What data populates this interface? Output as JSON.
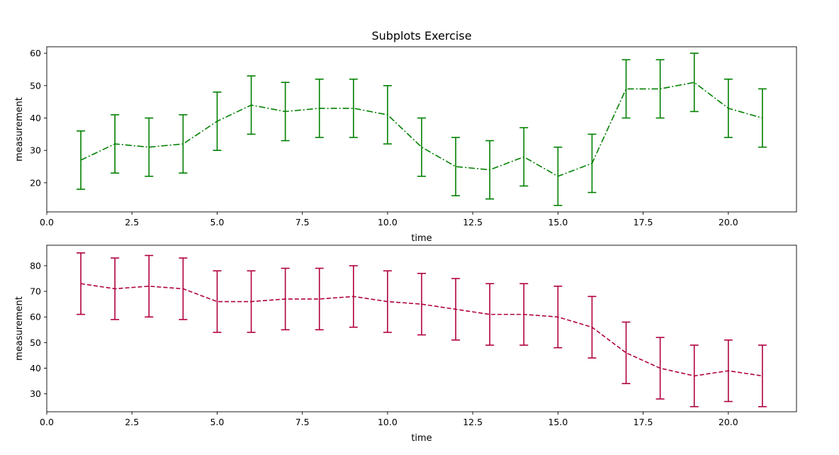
{
  "title": "Subplots Exercise",
  "chart_data": [
    {
      "type": "line",
      "title": "Subplots Exercise",
      "xlabel": "time",
      "ylabel": "measurement",
      "xlim": [
        0,
        22
      ],
      "ylim": [
        11,
        62
      ],
      "xticks": [
        0.0,
        2.5,
        5.0,
        7.5,
        10.0,
        12.5,
        15.0,
        17.5,
        20.0
      ],
      "xtick_labels": [
        "0.0",
        "2.5",
        "5.0",
        "7.5",
        "10.0",
        "12.5",
        "15.0",
        "17.5",
        "20.0"
      ],
      "yticks": [
        20,
        30,
        40,
        50,
        60
      ],
      "ytick_labels": [
        "20",
        "30",
        "40",
        "50",
        "60"
      ],
      "grid": false,
      "line_style": "dash-dot",
      "color": "#008000",
      "x": [
        1,
        2,
        3,
        4,
        5,
        6,
        7,
        8,
        9,
        10,
        11,
        12,
        13,
        14,
        15,
        16,
        17,
        18,
        19,
        20,
        21
      ],
      "y": [
        27,
        32,
        31,
        32,
        39,
        44,
        42,
        43,
        43,
        41,
        31,
        25,
        24,
        28,
        22,
        26,
        49,
        49,
        51,
        43,
        40
      ],
      "yerr": [
        9,
        9,
        9,
        9,
        9,
        9,
        9,
        9,
        9,
        9,
        9,
        9,
        9,
        9,
        9,
        9,
        9,
        9,
        9,
        9,
        9
      ]
    },
    {
      "type": "line",
      "xlabel": "time",
      "ylabel": "measurement",
      "xlim": [
        0,
        22
      ],
      "ylim": [
        23,
        88
      ],
      "xticks": [
        0.0,
        2.5,
        5.0,
        7.5,
        10.0,
        12.5,
        15.0,
        17.5,
        20.0
      ],
      "xtick_labels": [
        "0.0",
        "2.5",
        "5.0",
        "7.5",
        "10.0",
        "12.5",
        "15.0",
        "17.5",
        "20.0"
      ],
      "yticks": [
        30,
        40,
        50,
        60,
        70,
        80
      ],
      "ytick_labels": [
        "30",
        "40",
        "50",
        "60",
        "70",
        "80"
      ],
      "grid": false,
      "line_style": "dashed",
      "color": "#b00040",
      "x": [
        1,
        2,
        3,
        4,
        5,
        6,
        7,
        8,
        9,
        10,
        11,
        12,
        13,
        14,
        15,
        16,
        17,
        18,
        19,
        20,
        21
      ],
      "y": [
        73,
        71,
        72,
        71,
        66,
        66,
        67,
        67,
        68,
        66,
        65,
        63,
        61,
        61,
        60,
        56,
        46,
        40,
        37,
        39,
        37
      ],
      "yerr": [
        12,
        12,
        12,
        12,
        12,
        12,
        12,
        12,
        12,
        12,
        12,
        12,
        12,
        12,
        12,
        12,
        12,
        12,
        12,
        12,
        12
      ]
    }
  ]
}
